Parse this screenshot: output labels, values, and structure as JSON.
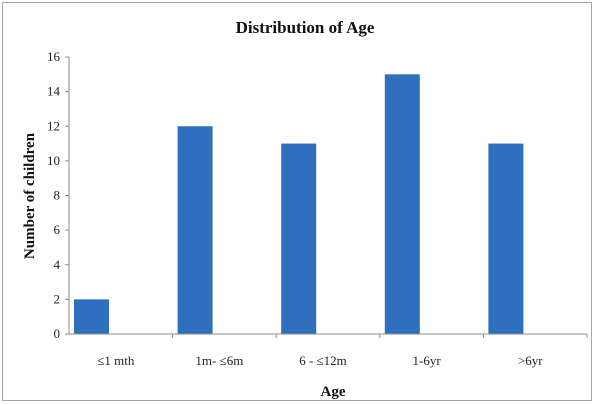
{
  "chart_data": {
    "type": "bar",
    "title": "Distribution of Age",
    "xlabel": "Age",
    "ylabel": "Number of children",
    "categories": [
      "≤1 mth",
      "1m- ≤6m",
      "6 - ≤12m",
      "1-6yr",
      ">6yr"
    ],
    "values": [
      2,
      12,
      11,
      15,
      11
    ],
    "ylim": [
      0,
      16
    ],
    "yticks": [
      0,
      2,
      4,
      6,
      8,
      10,
      12,
      14,
      16
    ],
    "grid": false,
    "legend": "none",
    "bar_color": "#2e6fbe"
  }
}
